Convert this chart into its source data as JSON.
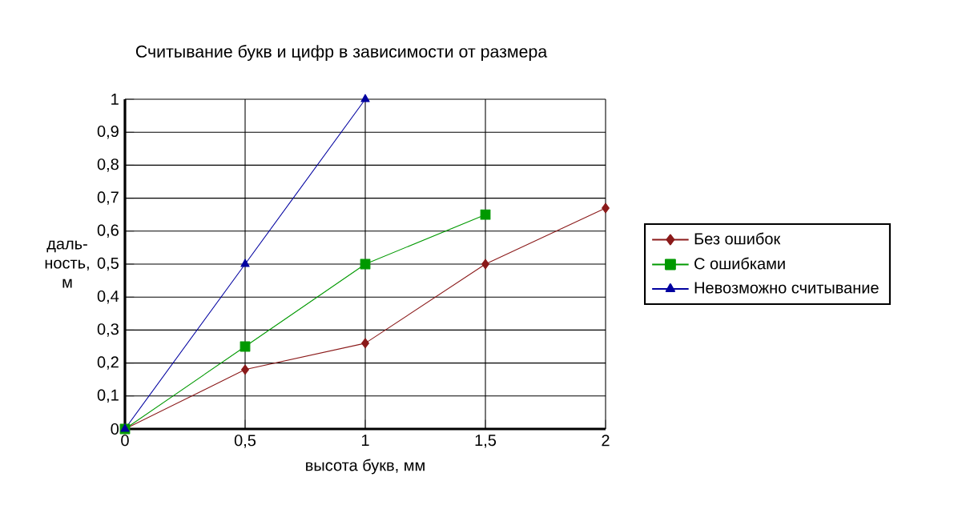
{
  "chart_data": {
    "type": "line",
    "title": "Считывание букв и цифр в зависимости от размера",
    "xlabel": "высота букв, мм",
    "ylabel": "даль- ность, м",
    "x": [
      0,
      0.5,
      1,
      1.5,
      2
    ],
    "series": [
      {
        "name": "Без ошибок",
        "color": "#8b1a1a",
        "marker": "diamond",
        "values": [
          0,
          0.18,
          0.26,
          0.5,
          0.67
        ]
      },
      {
        "name": "С ошибками",
        "color": "#009900",
        "marker": "square",
        "values": [
          0,
          0.25,
          0.5,
          0.65,
          null
        ]
      },
      {
        "name": "Невозможно считывание",
        "color": "#0000a0",
        "marker": "triangle",
        "values": [
          0,
          0.5,
          1,
          null,
          null
        ]
      }
    ],
    "xlim": [
      0,
      2
    ],
    "ylim": [
      0,
      1
    ],
    "xticks": [
      0,
      {
        "value": 0.5,
        "label": "0,5"
      },
      1,
      {
        "value": 1.5,
        "label": "1,5"
      },
      2
    ],
    "yticks": [
      0,
      {
        "value": 0.1,
        "label": "0,1"
      },
      {
        "value": 0.2,
        "label": "0,2"
      },
      {
        "value": 0.3,
        "label": "0,3"
      },
      {
        "value": 0.4,
        "label": "0,4"
      },
      {
        "value": 0.5,
        "label": "0,5"
      },
      {
        "value": 0.6,
        "label": "0,6"
      },
      {
        "value": 0.7,
        "label": "0,7"
      },
      {
        "value": 0.8,
        "label": "0,8"
      },
      {
        "value": 0.9,
        "label": "0,9"
      },
      1
    ],
    "grid": true,
    "legend": "right"
  }
}
